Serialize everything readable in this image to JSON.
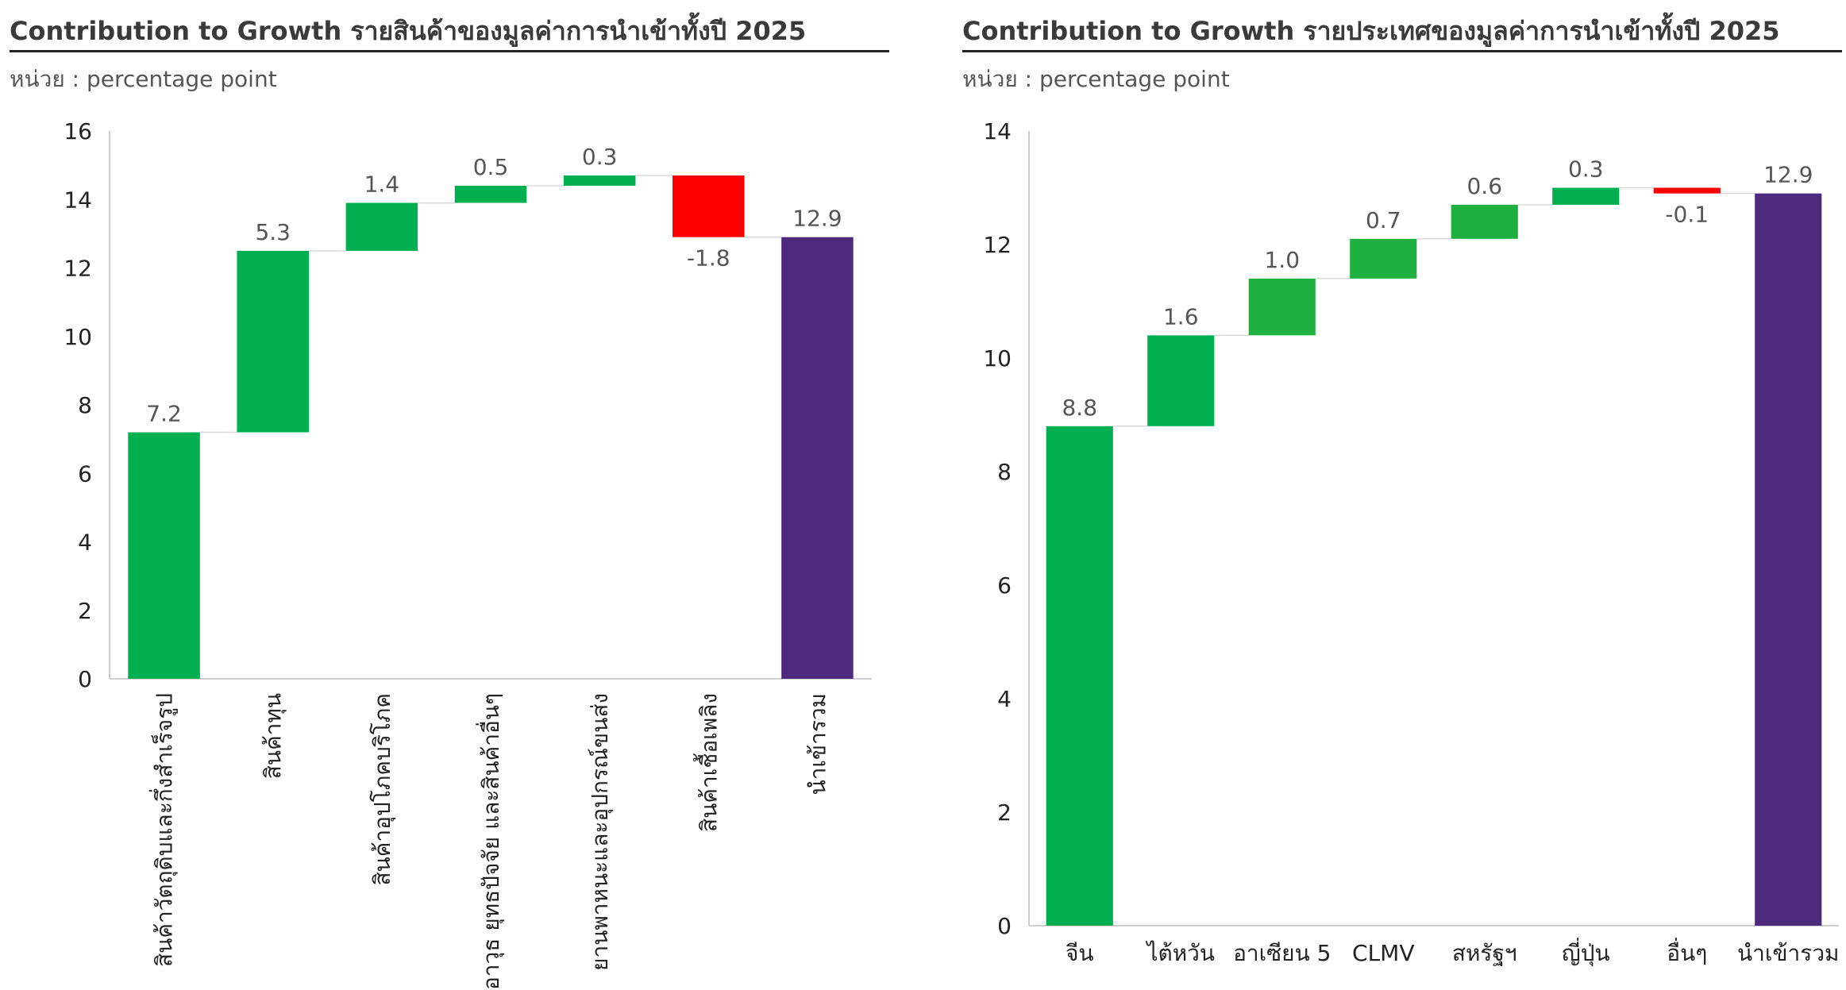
{
  "colors": {
    "positive": "#00b050",
    "positive_alt": "#20b040",
    "negative": "#ff0000",
    "total": "#4e2a7e",
    "axis": "#cfcfcf",
    "text": "#3a3a3a",
    "label": "#555555"
  },
  "left": {
    "title": "Contribution to Growth รายสินค้าของมูลค่าการนำเข้าทั้งปี 2025",
    "unit": "หน่วย : percentage point"
  },
  "right": {
    "title": "Contribution to Growth รายประเทศของมูลค่าการนำเข้าทั้งปี 2025",
    "unit": "หน่วย : percentage point"
  },
  "chart_data": [
    {
      "type": "bar",
      "subtype": "waterfall",
      "title": "Contribution to Growth รายสินค้าของมูลค่าการนำเข้าทั้งปี 2025",
      "ylabel": "หน่วย : percentage point",
      "ylim": [
        0,
        16
      ],
      "yticks": [
        0,
        2,
        4,
        6,
        8,
        10,
        12,
        14,
        16
      ],
      "categories": [
        "สินค้าวัตถุดิบและกึ่งสำเร็จรูป",
        "สินค้าทุน",
        "สินค้าอุปโภคบริโภค",
        "อาวุธ ยุทธปัจจัย และสินค้าอื่นๆ",
        "ยานพาหนะและอุปกรณ์ขนส่ง",
        "สินค้าเชื้อเพลิง",
        "นำเข้ารวม"
      ],
      "values": [
        7.2,
        5.3,
        1.4,
        0.5,
        0.3,
        -1.8,
        12.9
      ],
      "data_labels": [
        "7.2",
        "5.3",
        "1.4",
        "0.5",
        "0.3",
        "-1.8",
        "12.9"
      ],
      "total_index": 6,
      "xlabel_rotation": "vertical"
    },
    {
      "type": "bar",
      "subtype": "waterfall",
      "title": "Contribution to Growth รายประเทศของมูลค่าการนำเข้าทั้งปี 2025",
      "ylabel": "หน่วย : percentage point",
      "ylim": [
        0,
        14
      ],
      "yticks": [
        0,
        2,
        4,
        6,
        8,
        10,
        12,
        14
      ],
      "categories": [
        "จีน",
        "ไต้หวัน",
        "อาเซียน 5",
        "CLMV",
        "สหรัฐฯ",
        "ญี่ปุ่น",
        "อื่นๆ",
        "นำเข้ารวม"
      ],
      "values": [
        8.8,
        1.6,
        1.0,
        0.7,
        0.6,
        0.3,
        -0.1,
        12.9
      ],
      "data_labels": [
        "8.8",
        "1.6",
        "1.0",
        "0.7",
        "0.6",
        "0.3",
        "-0.1",
        "12.9"
      ],
      "total_index": 7,
      "xlabel_rotation": "horizontal"
    }
  ]
}
